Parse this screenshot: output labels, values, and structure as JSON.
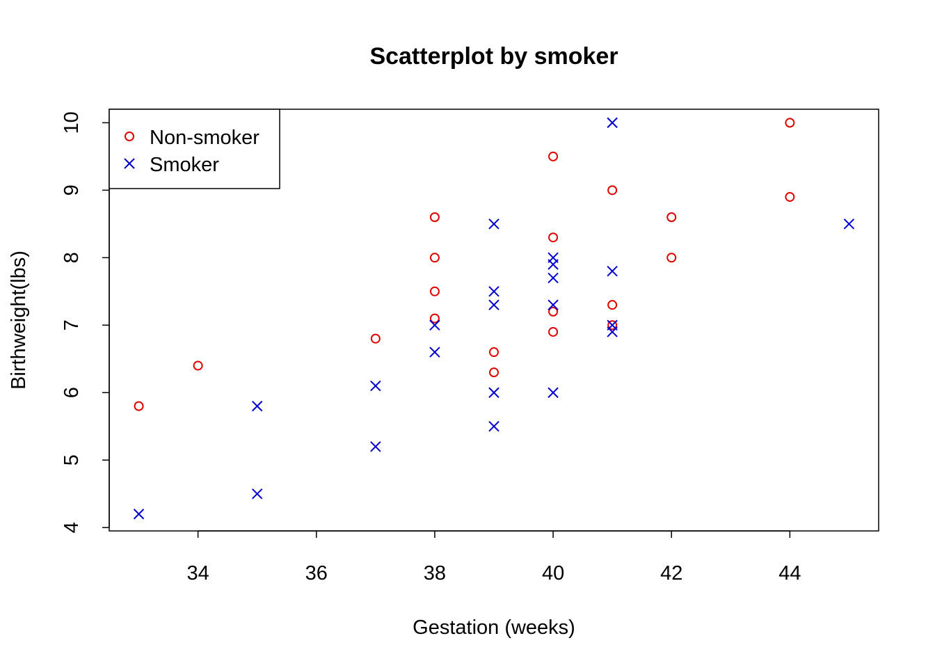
{
  "chart_data": {
    "type": "scatter",
    "title": "Scatterplot by smoker",
    "xlabel": "Gestation (weeks)",
    "ylabel": "Birthweight(lbs)",
    "xlim": [
      32.5,
      45.5
    ],
    "ylim": [
      3.95,
      10.2
    ],
    "xticks": [
      34,
      36,
      38,
      40,
      42,
      44
    ],
    "yticks": [
      4,
      5,
      6,
      7,
      8,
      9,
      10
    ],
    "grid": false,
    "legend_position": "top-left",
    "series": [
      {
        "name": "Non-smoker",
        "marker": "circle",
        "color": "#DF0000",
        "points": [
          [
            33,
            5.8
          ],
          [
            34,
            6.4
          ],
          [
            37,
            6.8
          ],
          [
            38,
            8.6
          ],
          [
            38,
            8.0
          ],
          [
            38,
            7.5
          ],
          [
            38,
            7.1
          ],
          [
            39,
            6.6
          ],
          [
            39,
            6.3
          ],
          [
            40,
            9.5
          ],
          [
            40,
            8.3
          ],
          [
            40,
            7.2
          ],
          [
            40,
            6.9
          ],
          [
            41,
            9.0
          ],
          [
            41,
            7.3
          ],
          [
            41,
            7.0
          ],
          [
            42,
            8.6
          ],
          [
            42,
            8.0
          ],
          [
            44,
            10.0
          ],
          [
            44,
            8.9
          ]
        ]
      },
      {
        "name": "Smoker",
        "marker": "cross",
        "color": "#0000CD",
        "points": [
          [
            33,
            4.2
          ],
          [
            35,
            5.8
          ],
          [
            35,
            4.5
          ],
          [
            37,
            6.1
          ],
          [
            37,
            5.2
          ],
          [
            38,
            7.0
          ],
          [
            38,
            6.6
          ],
          [
            39,
            8.5
          ],
          [
            39,
            7.5
          ],
          [
            39,
            7.3
          ],
          [
            39,
            6.0
          ],
          [
            39,
            5.5
          ],
          [
            40,
            8.0
          ],
          [
            40,
            7.9
          ],
          [
            40,
            7.7
          ],
          [
            40,
            7.3
          ],
          [
            40,
            6.0
          ],
          [
            41,
            10.0
          ],
          [
            41,
            7.8
          ],
          [
            41,
            7.0
          ],
          [
            41,
            6.9
          ],
          [
            45,
            8.5
          ]
        ]
      }
    ]
  }
}
